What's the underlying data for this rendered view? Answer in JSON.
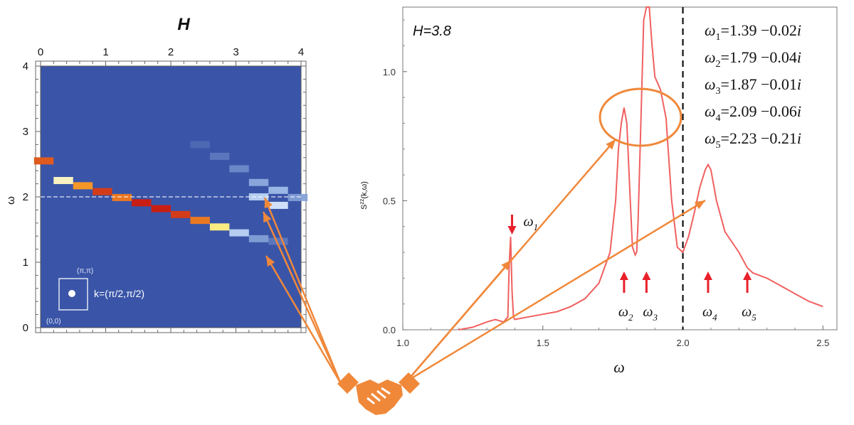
{
  "chart_data": [
    {
      "type": "heatmap",
      "title": "H",
      "xlabel": "",
      "ylabel": "ω",
      "xlim": [
        0,
        4
      ],
      "ylim": [
        0,
        4
      ],
      "x_ticks": [
        "0",
        "1",
        "2",
        "3",
        "4"
      ],
      "y_ticks": [
        "0",
        "1",
        "2",
        "3",
        "4"
      ],
      "reference_line_y": 2.0,
      "inset": {
        "top_label": "(π,π)",
        "bottom_label": "(0,0)",
        "k_label": "k=(π/2,π/2)"
      },
      "branches": [
        {
          "name": "",
          "points": [
            [
              0.05,
              2.55
            ],
            [
              0.35,
              2.25
            ],
            [
              0.65,
              2.17
            ],
            [
              0.95,
              2.08
            ],
            [
              1.25,
              1.99
            ],
            [
              1.55,
              1.91
            ],
            [
              1.85,
              1.82
            ],
            [
              2.15,
              1.73
            ],
            [
              2.45,
              1.64
            ],
            [
              2.75,
              1.54
            ],
            [
              3.05,
              1.45
            ],
            [
              3.35,
              1.36
            ],
            [
              3.65,
              1.32
            ]
          ],
          "intensities": [
            0.9,
            0.55,
            0.8,
            0.95,
            0.85,
            1.0,
            1.0,
            0.95,
            0.85,
            0.65,
            0.3,
            0.2,
            0.12
          ]
        },
        {
          "name": "",
          "points": [
            [
              2.45,
              2.8
            ],
            [
              2.75,
              2.62
            ],
            [
              3.05,
              2.43
            ],
            [
              3.35,
              2.22
            ],
            [
              3.65,
              2.1
            ],
            [
              3.95,
              1.99
            ]
          ],
          "intensities": [
            0.08,
            0.12,
            0.16,
            0.22,
            0.25,
            0.2
          ]
        },
        {
          "name": "",
          "points": [
            [
              3.35,
              2.0
            ],
            [
              3.65,
              1.87
            ],
            [
              3.95,
              1.99
            ]
          ],
          "intensities": [
            0.3,
            0.35,
            0.15
          ]
        }
      ]
    },
    {
      "type": "line",
      "title": "H=3.8",
      "xlabel": "ω",
      "ylabel": "S^{zz}(k,ω)",
      "xlim": [
        1.0,
        2.55
      ],
      "ylim": [
        0,
        1.25
      ],
      "x_ticks": [
        "1.0",
        "1.5",
        "2.0",
        "2.5"
      ],
      "y_ticks": [
        "0.0",
        "0.5",
        "1.0"
      ],
      "vertical_dashed_line_x": 2.0,
      "series": [
        {
          "name": "",
          "color": "#f06060",
          "x": [
            1.2,
            1.25,
            1.3,
            1.33,
            1.36,
            1.375,
            1.38,
            1.385,
            1.39,
            1.395,
            1.4,
            1.45,
            1.5,
            1.55,
            1.6,
            1.65,
            1.7,
            1.74,
            1.76,
            1.77,
            1.78,
            1.79,
            1.8,
            1.81,
            1.82,
            1.83,
            1.835,
            1.84,
            1.85,
            1.86,
            1.87,
            1.88,
            1.89,
            1.9,
            1.92,
            1.94,
            1.96,
            1.98,
            2.0,
            2.02,
            2.04,
            2.06,
            2.08,
            2.09,
            2.1,
            2.12,
            2.15,
            2.2,
            2.23,
            2.25,
            2.3,
            2.35,
            2.4,
            2.45,
            2.5
          ],
          "y": [
            0.0,
            0.01,
            0.03,
            0.04,
            0.03,
            0.05,
            0.25,
            0.36,
            0.15,
            0.05,
            0.04,
            0.05,
            0.06,
            0.07,
            0.09,
            0.12,
            0.18,
            0.3,
            0.5,
            0.7,
            0.8,
            0.86,
            0.8,
            0.55,
            0.32,
            0.29,
            0.3,
            0.42,
            0.8,
            1.2,
            1.25,
            1.25,
            1.1,
            0.98,
            0.93,
            0.82,
            0.5,
            0.32,
            0.3,
            0.36,
            0.45,
            0.55,
            0.62,
            0.64,
            0.62,
            0.5,
            0.38,
            0.3,
            0.24,
            0.22,
            0.2,
            0.17,
            0.14,
            0.11,
            0.09
          ]
        }
      ],
      "annotations": {
        "modes": [
          {
            "label": "ω_1",
            "x": 1.39
          },
          {
            "label": "ω_2",
            "x": 1.79
          },
          {
            "label": "ω_3",
            "x": 1.87
          },
          {
            "label": "ω_4",
            "x": 2.09
          },
          {
            "label": "ω_5",
            "x": 2.23
          }
        ],
        "values": [
          {
            "label": "ω_1",
            "text": "=1.39 −0.02i"
          },
          {
            "label": "ω_2",
            "text": "=1.79 −0.04i"
          },
          {
            "label": "ω_3",
            "text": "=1.87 −0.01i"
          },
          {
            "label": "ω_4",
            "text": "=2.09 −0.06i"
          },
          {
            "label": "ω_5",
            "text": "=2.23 −0.21i"
          }
        ]
      }
    }
  ],
  "colors": {
    "heatmap_background": "#3a55a8",
    "curve": "#f06060",
    "connector": "#f0883a",
    "marker_arrow": "#e8202a"
  },
  "icons": [
    "handshake-icon"
  ]
}
